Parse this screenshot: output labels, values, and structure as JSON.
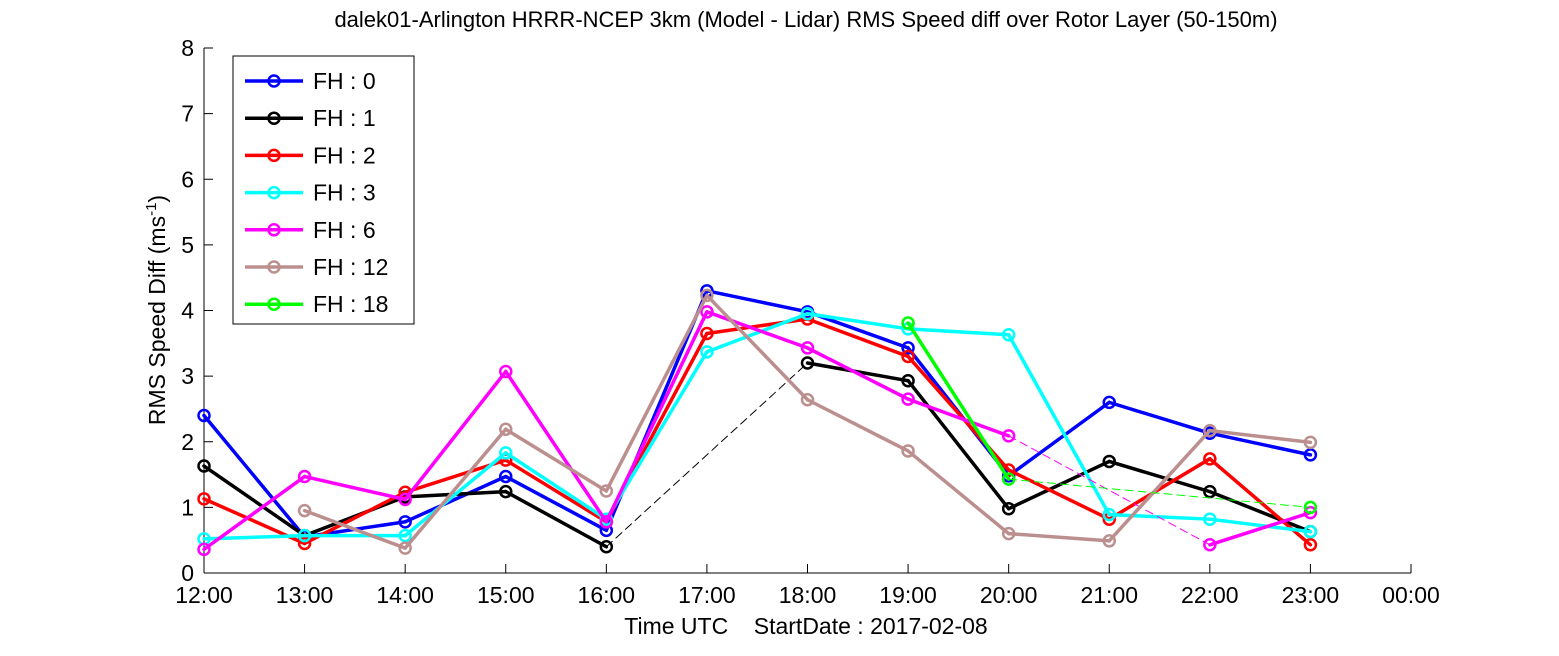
{
  "chart_data": {
    "type": "line",
    "title": "dalek01-Arlington HRRR-NCEP 3km (Model - Lidar) RMS Speed diff over Rotor Layer (50-150m)",
    "xlabel": "Time UTC    StartDate : 2017-02-08",
    "ylabel": "RMS Speed Diff (ms",
    "ylabel_sup": "-1",
    "ylabel_close": ")",
    "x_tick_labels": [
      "12:00",
      "13:00",
      "14:00",
      "15:00",
      "16:00",
      "17:00",
      "18:00",
      "19:00",
      "20:00",
      "21:00",
      "22:00",
      "23:00",
      "00:00"
    ],
    "y_ticks": [
      0,
      1,
      2,
      3,
      4,
      5,
      6,
      7,
      8
    ],
    "xlim": [
      "12:00",
      "00:00"
    ],
    "ylim": [
      0,
      8
    ],
    "grid": false,
    "legend_position": "top-left",
    "series": [
      {
        "name": "FH : 0",
        "color": "#0000ff",
        "points": [
          [
            "12:00",
            2.4
          ],
          [
            "13:00",
            0.55
          ],
          [
            "14:00",
            0.78
          ],
          [
            "15:00",
            1.47
          ],
          [
            "16:00",
            0.65
          ],
          [
            "17:00",
            4.3
          ],
          [
            "18:00",
            3.98
          ],
          [
            "19:00",
            3.43
          ],
          [
            "20:00",
            1.48
          ],
          [
            "21:00",
            2.6
          ],
          [
            "22:00",
            2.13
          ],
          [
            "23:00",
            1.8
          ]
        ]
      },
      {
        "name": "FH : 1",
        "color": "#000000",
        "points": [
          [
            "12:00",
            1.63
          ],
          [
            "13:00",
            0.57
          ],
          [
            "14:00",
            1.16
          ],
          [
            "15:00",
            1.24
          ],
          [
            "16:00",
            0.4
          ],
          [
            "18:00",
            3.2
          ],
          [
            "19:00",
            2.93
          ],
          [
            "20:00",
            0.98
          ],
          [
            "21:00",
            1.7
          ],
          [
            "22:00",
            1.24
          ],
          [
            "23:00",
            0.63
          ]
        ]
      },
      {
        "name": "FH : 2",
        "color": "#ff0000",
        "points": [
          [
            "12:00",
            1.13
          ],
          [
            "13:00",
            0.45
          ],
          [
            "14:00",
            1.23
          ],
          [
            "15:00",
            1.72
          ],
          [
            "16:00",
            0.78
          ],
          [
            "17:00",
            3.65
          ],
          [
            "18:00",
            3.87
          ],
          [
            "19:00",
            3.3
          ],
          [
            "20:00",
            1.57
          ],
          [
            "21:00",
            0.82
          ],
          [
            "22:00",
            1.74
          ],
          [
            "23:00",
            0.43
          ]
        ]
      },
      {
        "name": "FH : 3",
        "color": "#00ffff",
        "points": [
          [
            "12:00",
            0.52
          ],
          [
            "13:00",
            0.57
          ],
          [
            "14:00",
            0.57
          ],
          [
            "15:00",
            1.83
          ],
          [
            "16:00",
            0.82
          ],
          [
            "17:00",
            3.37
          ],
          [
            "18:00",
            3.95
          ],
          [
            "19:00",
            3.72
          ],
          [
            "20:00",
            3.63
          ],
          [
            "21:00",
            0.89
          ],
          [
            "22:00",
            0.82
          ],
          [
            "23:00",
            0.63
          ]
        ]
      },
      {
        "name": "FH : 6",
        "color": "#ff00ff",
        "points": [
          [
            "12:00",
            0.36
          ],
          [
            "13:00",
            1.47
          ],
          [
            "14:00",
            1.12
          ],
          [
            "15:00",
            3.07
          ],
          [
            "16:00",
            0.78
          ],
          [
            "17:00",
            3.98
          ],
          [
            "18:00",
            3.43
          ],
          [
            "19:00",
            2.65
          ],
          [
            "20:00",
            2.09
          ],
          [
            "22:00",
            0.43
          ],
          [
            "23:00",
            0.92
          ]
        ]
      },
      {
        "name": "FH : 12",
        "color": "#bc8f8f",
        "points": [
          [
            "13:00",
            0.95
          ],
          [
            "14:00",
            0.38
          ],
          [
            "15:00",
            2.19
          ],
          [
            "16:00",
            1.25
          ],
          [
            "17:00",
            4.23
          ],
          [
            "18:00",
            2.64
          ],
          [
            "19:00",
            1.86
          ],
          [
            "20:00",
            0.6
          ],
          [
            "21:00",
            0.49
          ],
          [
            "22:00",
            2.17
          ],
          [
            "23:00",
            1.99
          ]
        ]
      },
      {
        "name": "FH : 18",
        "color": "#00ff00",
        "points": [
          [
            "19:00",
            3.81
          ],
          [
            "20:00",
            1.43
          ],
          [
            "23:00",
            1.0
          ]
        ]
      }
    ]
  }
}
